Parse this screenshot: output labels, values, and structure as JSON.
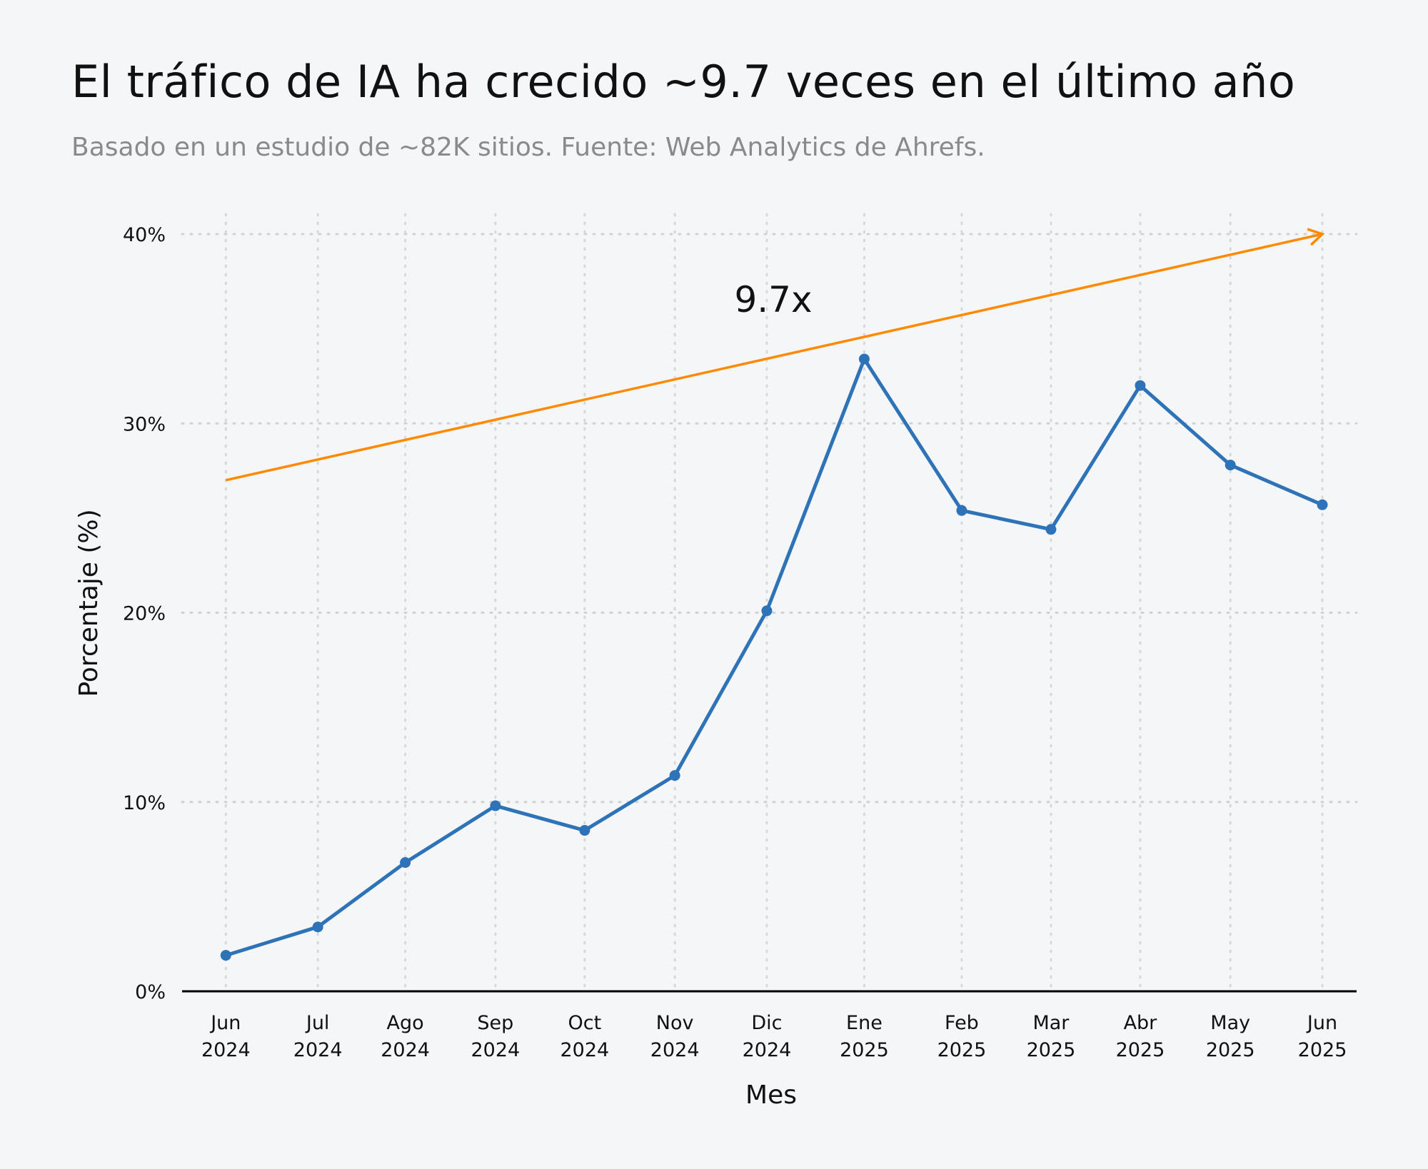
{
  "title": "El tráfico de IA ha crecido ~9.7 veces en el último año",
  "subtitle": "Basado en un estudio de ~82K sitios. Fuente: Web Analytics de Ahrefs.",
  "chart_data": {
    "type": "line",
    "xlabel": "Mes",
    "ylabel": "Porcentaje (%)",
    "ylim": [
      0,
      40
    ],
    "yticks": [
      "0%",
      "10%",
      "20%",
      "30%",
      "40%"
    ],
    "ytick_values": [
      0,
      10,
      20,
      30,
      40
    ],
    "grid": true,
    "categories": [
      [
        "Jun",
        "2024"
      ],
      [
        "Jul",
        "2024"
      ],
      [
        "Ago",
        "2024"
      ],
      [
        "Sep",
        "2024"
      ],
      [
        "Oct",
        "2024"
      ],
      [
        "Nov",
        "2024"
      ],
      [
        "Dic",
        "2024"
      ],
      [
        "Ene",
        "2025"
      ],
      [
        "Feb",
        "2025"
      ],
      [
        "Mar",
        "2025"
      ],
      [
        "Abr",
        "2025"
      ],
      [
        "May",
        "2025"
      ],
      [
        "Jun",
        "2025"
      ]
    ],
    "series": [
      {
        "values": [
          1.9,
          3.4,
          6.8,
          9.8,
          8.5,
          11.4,
          20.1,
          33.4,
          25.4,
          24.4,
          32.0,
          27.8,
          25.7
        ],
        "color": "#2e73b8"
      }
    ],
    "annotation": {
      "text": "9.7x",
      "arrow_from": [
        0,
        27.0
      ],
      "arrow_to": [
        12,
        40.0
      ],
      "color": "#ff8a00"
    }
  }
}
